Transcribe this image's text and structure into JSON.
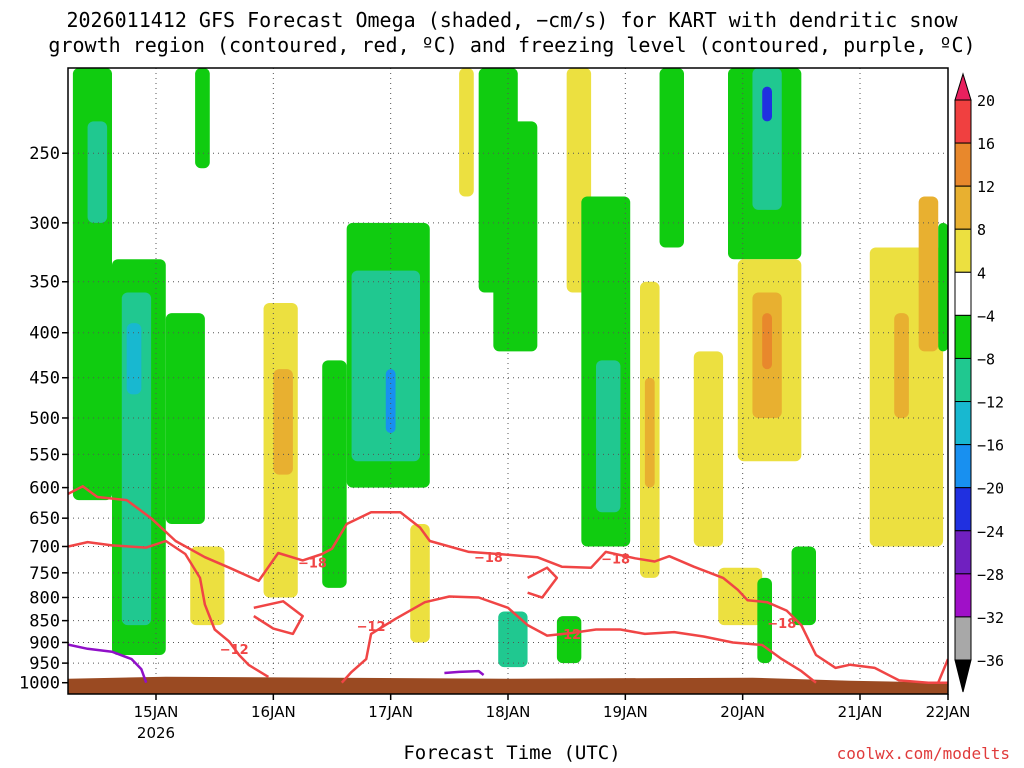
{
  "title_line1": "2026011412 GFS Forecast Omega (shaded, −cm/s) for KART with dendritic snow",
  "title_line2": "growth region (contoured, red, ºC) and freezing level (contoured, purple, ºC)",
  "credit": "coolwx.com/modelts",
  "chart_data": {
    "type": "heatmap",
    "title": "2026011412 GFS Forecast Omega (shaded, −cm/s) for KART with dendritic snow growth region (contoured, red, ºC) and freezing level (contoured, purple, ºC)",
    "xlabel": "Forecast Time (UTC)",
    "ylabel": "",
    "y_scale": "log-pressure",
    "y_axis": {
      "range_hpa": [
        1030,
        200
      ],
      "ticks": [
        250,
        300,
        350,
        400,
        450,
        500,
        550,
        600,
        650,
        700,
        750,
        800,
        850,
        900,
        950,
        1000
      ]
    },
    "x_axis": {
      "range_hours_since_start": [
        0,
        180
      ],
      "ticks": [
        {
          "label": "15JAN",
          "sublabel": "2026",
          "hour": 18
        },
        {
          "label": "16JAN",
          "sublabel": "",
          "hour": 42
        },
        {
          "label": "17JAN",
          "sublabel": "",
          "hour": 66
        },
        {
          "label": "18JAN",
          "sublabel": "",
          "hour": 90
        },
        {
          "label": "19JAN",
          "sublabel": "",
          "hour": 114
        },
        {
          "label": "20JAN",
          "sublabel": "",
          "hour": 138
        },
        {
          "label": "21JAN",
          "sublabel": "",
          "hour": 162
        },
        {
          "label": "22JAN",
          "sublabel": "",
          "hour": 180
        }
      ]
    },
    "grid": true,
    "colorbar": {
      "labels": [
        "20",
        "16",
        "12",
        "8",
        "4",
        "−4",
        "−8",
        "−12",
        "−16",
        "−20",
        "−24",
        "−28",
        "−32",
        "−36"
      ],
      "bins": [
        {
          "range": [
            20,
            24
          ],
          "color": "#e8205e"
        },
        {
          "range": [
            16,
            20
          ],
          "color": "#f04040"
        },
        {
          "range": [
            12,
            16
          ],
          "color": "#e8882c"
        },
        {
          "range": [
            8,
            12
          ],
          "color": "#e8b030"
        },
        {
          "range": [
            4,
            8
          ],
          "color": "#ece040"
        },
        {
          "range": [
            -4,
            4
          ],
          "color": "#ffffff"
        },
        {
          "range": [
            -8,
            -4
          ],
          "color": "#10cc10"
        },
        {
          "range": [
            -12,
            -8
          ],
          "color": "#20c890"
        },
        {
          "range": [
            -16,
            -12
          ],
          "color": "#18b8d0"
        },
        {
          "range": [
            -20,
            -16
          ],
          "color": "#1890f0"
        },
        {
          "range": [
            -24,
            -20
          ],
          "color": "#2030e0"
        },
        {
          "range": [
            -28,
            -24
          ],
          "color": "#7020c0"
        },
        {
          "range": [
            -32,
            -28
          ],
          "color": "#a010c8"
        },
        {
          "range": [
            -36,
            -32
          ],
          "color": "#a8a8a8"
        },
        {
          "range": [
            -40,
            -36
          ],
          "color": "#000000"
        }
      ]
    },
    "shaded_regions": [
      {
        "hour": [
          1,
          9
        ],
        "p": [
          200,
          620
        ],
        "value": -6
      },
      {
        "hour": [
          4,
          8
        ],
        "p": [
          230,
          300
        ],
        "value": -10
      },
      {
        "hour": [
          9,
          20
        ],
        "p": [
          330,
          930
        ],
        "value": -7
      },
      {
        "hour": [
          11,
          17
        ],
        "p": [
          360,
          860
        ],
        "value": -11
      },
      {
        "hour": [
          12,
          15
        ],
        "p": [
          390,
          470
        ],
        "value": -15
      },
      {
        "hour": [
          20,
          28
        ],
        "p": [
          380,
          660
        ],
        "value": -6
      },
      {
        "hour": [
          26,
          29
        ],
        "p": [
          200,
          260
        ],
        "value": -6
      },
      {
        "hour": [
          25,
          32
        ],
        "p": [
          700,
          860
        ],
        "value": 5
      },
      {
        "hour": [
          40,
          47
        ],
        "p": [
          370,
          800
        ],
        "value": 5
      },
      {
        "hour": [
          42,
          46
        ],
        "p": [
          440,
          580
        ],
        "value": 10
      },
      {
        "hour": [
          52,
          57
        ],
        "p": [
          430,
          780
        ],
        "value": -6
      },
      {
        "hour": [
          57,
          74
        ],
        "p": [
          300,
          600
        ],
        "value": -6
      },
      {
        "hour": [
          58,
          72
        ],
        "p": [
          340,
          560
        ],
        "value": -9
      },
      {
        "hour": [
          65,
          67
        ],
        "p": [
          440,
          520
        ],
        "value": -17
      },
      {
        "hour": [
          70,
          74
        ],
        "p": [
          660,
          900
        ],
        "value": 5
      },
      {
        "hour": [
          80,
          83
        ],
        "p": [
          200,
          280
        ],
        "value": 5
      },
      {
        "hour": [
          84,
          92
        ],
        "p": [
          200,
          360
        ],
        "value": -6
      },
      {
        "hour": [
          87,
          96
        ],
        "p": [
          230,
          420
        ],
        "value": -8
      },
      {
        "hour": [
          88,
          94
        ],
        "p": [
          830,
          960
        ],
        "value": -9
      },
      {
        "hour": [
          100,
          105
        ],
        "p": [
          840,
          950
        ],
        "value": -6
      },
      {
        "hour": [
          102,
          107
        ],
        "p": [
          200,
          360
        ],
        "value": 5
      },
      {
        "hour": [
          105,
          115
        ],
        "p": [
          280,
          700
        ],
        "value": -6
      },
      {
        "hour": [
          108,
          113
        ],
        "p": [
          430,
          640
        ],
        "value": -10
      },
      {
        "hour": [
          117,
          121
        ],
        "p": [
          350,
          760
        ],
        "value": 5
      },
      {
        "hour": [
          118,
          120
        ],
        "p": [
          450,
          600
        ],
        "value": 10
      },
      {
        "hour": [
          121,
          126
        ],
        "p": [
          200,
          320
        ],
        "value": -6
      },
      {
        "hour": [
          128,
          134
        ],
        "p": [
          420,
          700
        ],
        "value": 5
      },
      {
        "hour": [
          135,
          150
        ],
        "p": [
          200,
          330
        ],
        "value": -6
      },
      {
        "hour": [
          140,
          146
        ],
        "p": [
          200,
          290
        ],
        "value": -10
      },
      {
        "hour": [
          142,
          144
        ],
        "p": [
          210,
          230
        ],
        "value": -22
      },
      {
        "hour": [
          137,
          150
        ],
        "p": [
          330,
          560
        ],
        "value": 5
      },
      {
        "hour": [
          140,
          146
        ],
        "p": [
          360,
          500
        ],
        "value": 10
      },
      {
        "hour": [
          142,
          144
        ],
        "p": [
          380,
          440
        ],
        "value": 14
      },
      {
        "hour": [
          133,
          142
        ],
        "p": [
          740,
          860
        ],
        "value": 5
      },
      {
        "hour": [
          141,
          144
        ],
        "p": [
          760,
          950
        ],
        "value": -8
      },
      {
        "hour": [
          148,
          153
        ],
        "p": [
          700,
          860
        ],
        "value": -6
      },
      {
        "hour": [
          164,
          179
        ],
        "p": [
          320,
          700
        ],
        "value": 5
      },
      {
        "hour": [
          169,
          172
        ],
        "p": [
          380,
          500
        ],
        "value": 10
      },
      {
        "hour": [
          174,
          178
        ],
        "p": [
          280,
          420
        ],
        "value": 10
      },
      {
        "hour": [
          178,
          180
        ],
        "p": [
          300,
          420
        ],
        "value": -6
      }
    ],
    "red_contours": [
      {
        "label": "−18",
        "points": [
          [
            0,
            610
          ],
          [
            3,
            598
          ],
          [
            6,
            615
          ],
          [
            12,
            620
          ],
          [
            17,
            650
          ],
          [
            22,
            690
          ],
          [
            28,
            720
          ],
          [
            33,
            740
          ],
          [
            39,
            766
          ],
          [
            43,
            712
          ],
          [
            48,
            726
          ],
          [
            52,
            714
          ],
          [
            54,
            704
          ],
          [
            57,
            660
          ],
          [
            62,
            640
          ],
          [
            68,
            640
          ],
          [
            72,
            666
          ],
          [
            74,
            690
          ],
          [
            82,
            710
          ],
          [
            88,
            714
          ],
          [
            96,
            720
          ],
          [
            101,
            738
          ],
          [
            107,
            740
          ],
          [
            110,
            710
          ],
          [
            116,
            722
          ],
          [
            120,
            728
          ],
          [
            123,
            718
          ],
          [
            128,
            738
          ],
          [
            134,
            760
          ],
          [
            137,
            784
          ],
          [
            139,
            806
          ],
          [
            143,
            810
          ],
          [
            147,
            828
          ],
          [
            150,
            860
          ],
          [
            153,
            930
          ],
          [
            157,
            962
          ],
          [
            160,
            954
          ],
          [
            165,
            962
          ],
          [
            170,
            994
          ],
          [
            176,
            1000
          ],
          [
            180,
            1000
          ]
        ]
      },
      {
        "label": "−12",
        "points": [
          [
            0,
            700
          ],
          [
            4,
            692
          ],
          [
            9,
            698
          ],
          [
            16,
            702
          ],
          [
            20,
            690
          ],
          [
            24,
            714
          ],
          [
            27,
            760
          ],
          [
            28,
            815
          ],
          [
            30,
            870
          ],
          [
            33,
            898
          ],
          [
            35,
            930
          ],
          [
            37,
            955
          ],
          [
            41,
            985
          ]
        ]
      },
      {
        "label": "",
        "points": [
          [
            38,
            822
          ],
          [
            44,
            808
          ],
          [
            48,
            840
          ],
          [
            46,
            880
          ],
          [
            42,
            868
          ],
          [
            38,
            840
          ]
        ]
      },
      {
        "label": "−12",
        "points": [
          [
            56,
            1000
          ],
          [
            58,
            972
          ],
          [
            61,
            940
          ],
          [
            62,
            880
          ],
          [
            67,
            846
          ],
          [
            73,
            810
          ],
          [
            78,
            798
          ],
          [
            84,
            800
          ],
          [
            90,
            822
          ],
          [
            94,
            860
          ],
          [
            98,
            884
          ],
          [
            103,
            878
          ],
          [
            108,
            870
          ],
          [
            113,
            870
          ],
          [
            118,
            880
          ],
          [
            124,
            876
          ],
          [
            130,
            886
          ],
          [
            136,
            900
          ],
          [
            142,
            906
          ],
          [
            146,
            940
          ],
          [
            150,
            970
          ],
          [
            153,
            1000
          ]
        ]
      },
      {
        "label": "",
        "points": [
          [
            94,
            760
          ],
          [
            98,
            740
          ],
          [
            100,
            760
          ],
          [
            97,
            800
          ],
          [
            94,
            790
          ]
        ]
      },
      {
        "label": "",
        "points": [
          [
            178,
            1000
          ],
          [
            180,
            940
          ]
        ]
      }
    ],
    "purple_contours": [
      {
        "label": "",
        "points": [
          [
            0,
            905
          ],
          [
            4,
            915
          ],
          [
            9,
            922
          ],
          [
            13,
            940
          ],
          [
            15,
            965
          ],
          [
            16,
            1000
          ]
        ]
      },
      {
        "label": "",
        "points": [
          [
            77,
            975
          ],
          [
            80,
            972
          ],
          [
            84,
            970
          ],
          [
            85,
            980
          ]
        ]
      }
    ]
  }
}
